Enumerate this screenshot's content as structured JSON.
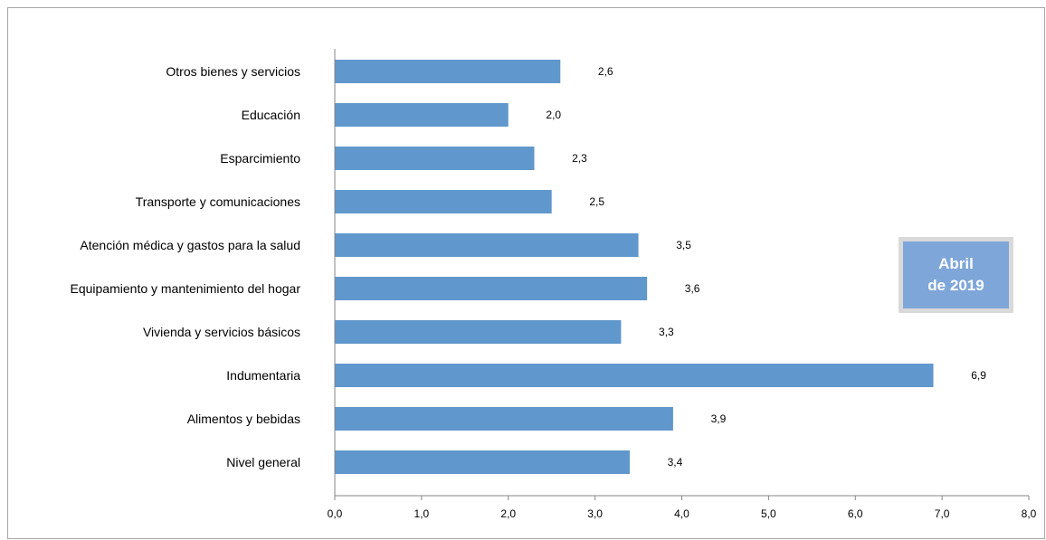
{
  "chart_data": {
    "type": "bar",
    "orientation": "horizontal",
    "categories": [
      "Otros bienes y servicios",
      "Educación",
      "Esparcimiento",
      "Transporte y comunicaciones",
      "Atención médica y gastos para la salud",
      "Equipamiento y  mantenimiento del hogar",
      "Vivienda y servicios básicos",
      "Indumentaria",
      "Alimentos y bebidas",
      "Nivel  general"
    ],
    "values": [
      2.6,
      2.0,
      2.3,
      2.5,
      3.5,
      3.6,
      3.3,
      6.9,
      3.9,
      3.4
    ],
    "value_labels": [
      "2,6",
      "2,0",
      "2,3",
      "2,5",
      "3,5",
      "3,6",
      "3,3",
      "6,9",
      "3,9",
      "3,4"
    ],
    "xticks": [
      "0,0",
      "1,0",
      "2,0",
      "3,0",
      "4,0",
      "5,0",
      "6,0",
      "7,0",
      "8,0"
    ],
    "xlim": [
      0,
      8
    ],
    "grid": false,
    "bar_color": "#6097cc",
    "title": "",
    "xlabel": "",
    "ylabel": ""
  },
  "period_box": {
    "line1": "Abril",
    "line2": "de 2019",
    "fill_color": "#7ea6d9",
    "border_color": "#d9d9d9"
  }
}
